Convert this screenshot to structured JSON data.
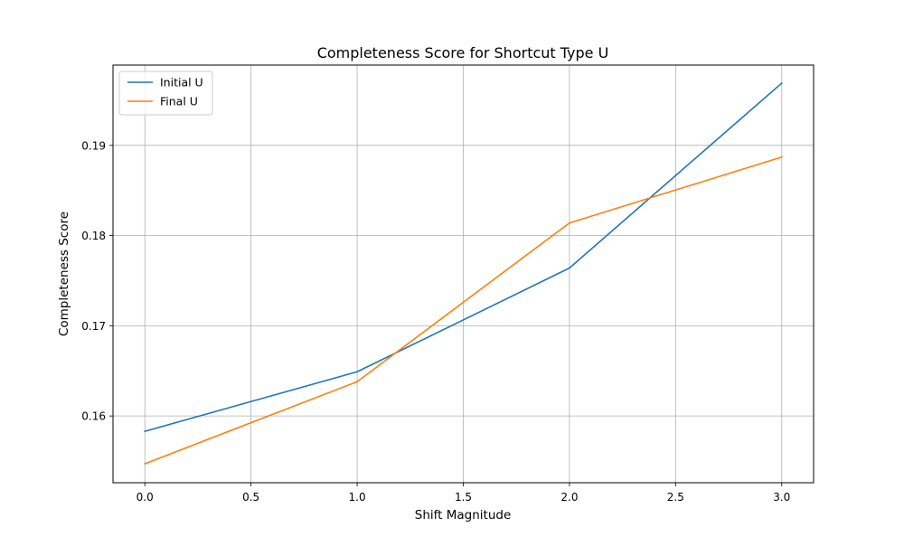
{
  "chart_data": {
    "type": "line",
    "title": "Completeness Score for Shortcut Type U",
    "xlabel": "Shift Magnitude",
    "ylabel": "Completeness Score",
    "x": [
      0,
      1,
      2,
      3
    ],
    "series": [
      {
        "name": "Initial U",
        "color": "#1f77b4",
        "values": [
          0.1583,
          0.1649,
          0.1764,
          0.1969
        ]
      },
      {
        "name": "Final U",
        "color": "#ff7f0e",
        "values": [
          0.1547,
          0.1638,
          0.1814,
          0.1887
        ]
      }
    ],
    "xlim": [
      -0.15,
      3.15
    ],
    "ylim": [
      0.1526,
      0.1989
    ],
    "xticks": [
      0,
      0.5,
      1,
      1.5,
      2,
      2.5,
      3
    ],
    "xtick_labels": [
      "0.0",
      "0.5",
      "1.0",
      "1.5",
      "2.0",
      "2.5",
      "3.0"
    ],
    "yticks": [
      0.16,
      0.17,
      0.18,
      0.19
    ],
    "ytick_labels": [
      "0.16",
      "0.17",
      "0.18",
      "0.19"
    ],
    "grid": true,
    "legend_position": "top-left"
  }
}
